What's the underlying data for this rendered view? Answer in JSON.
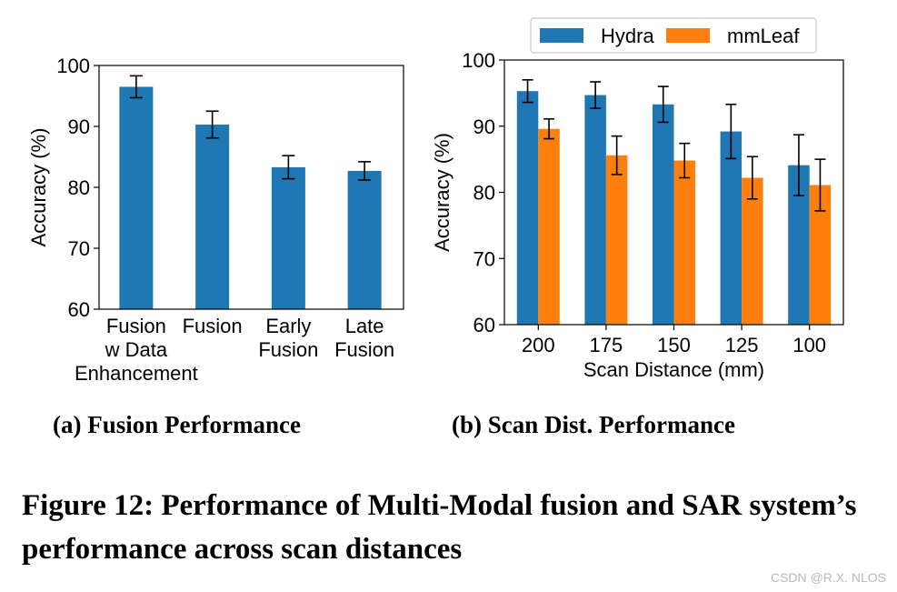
{
  "colors": {
    "blue": "#1f77b4",
    "orange": "#ff7f0e"
  },
  "chart_data": [
    {
      "type": "bar",
      "ylabel": "Accuracy (%)",
      "ylim": [
        60,
        100
      ],
      "yticks": [
        "60",
        "70",
        "80",
        "90",
        "100"
      ],
      "categories": [
        [
          "Fusion",
          "w Data",
          "Enhancement"
        ],
        [
          "Fusion"
        ],
        [
          "Early",
          "Fusion"
        ],
        [
          "Late",
          "Fusion"
        ]
      ],
      "values": [
        96.5,
        90.3,
        83.3,
        82.7
      ],
      "errors": [
        1.8,
        2.2,
        1.9,
        1.5
      ],
      "legend": null,
      "grid": false
    },
    {
      "type": "bar",
      "xlabel": "Scan Distance (mm)",
      "ylabel": "Accuracy (%)",
      "ylim": [
        60,
        100
      ],
      "yticks": [
        "60",
        "70",
        "80",
        "90",
        "100"
      ],
      "categories": [
        "200",
        "175",
        "150",
        "125",
        "100"
      ],
      "series": [
        {
          "name": "Hydra",
          "values": [
            95.3,
            94.7,
            93.3,
            89.2,
            84.1
          ],
          "errors": [
            1.7,
            2.0,
            2.7,
            4.1,
            4.6
          ]
        },
        {
          "name": "mmLeaf",
          "values": [
            89.6,
            85.6,
            84.8,
            82.2,
            81.1
          ],
          "errors": [
            1.5,
            2.9,
            2.6,
            3.2,
            3.9
          ]
        }
      ],
      "legend": "top-center",
      "grid": false
    }
  ],
  "captions": {
    "sub_a": "(a) Fusion Performance",
    "sub_b": "(b) Scan Dist. Performance",
    "figure": "Figure 12: Performance of Multi-Modal fusion and SAR system’s performance across scan distances"
  },
  "watermark": "CSDN @R.X. NLOS"
}
